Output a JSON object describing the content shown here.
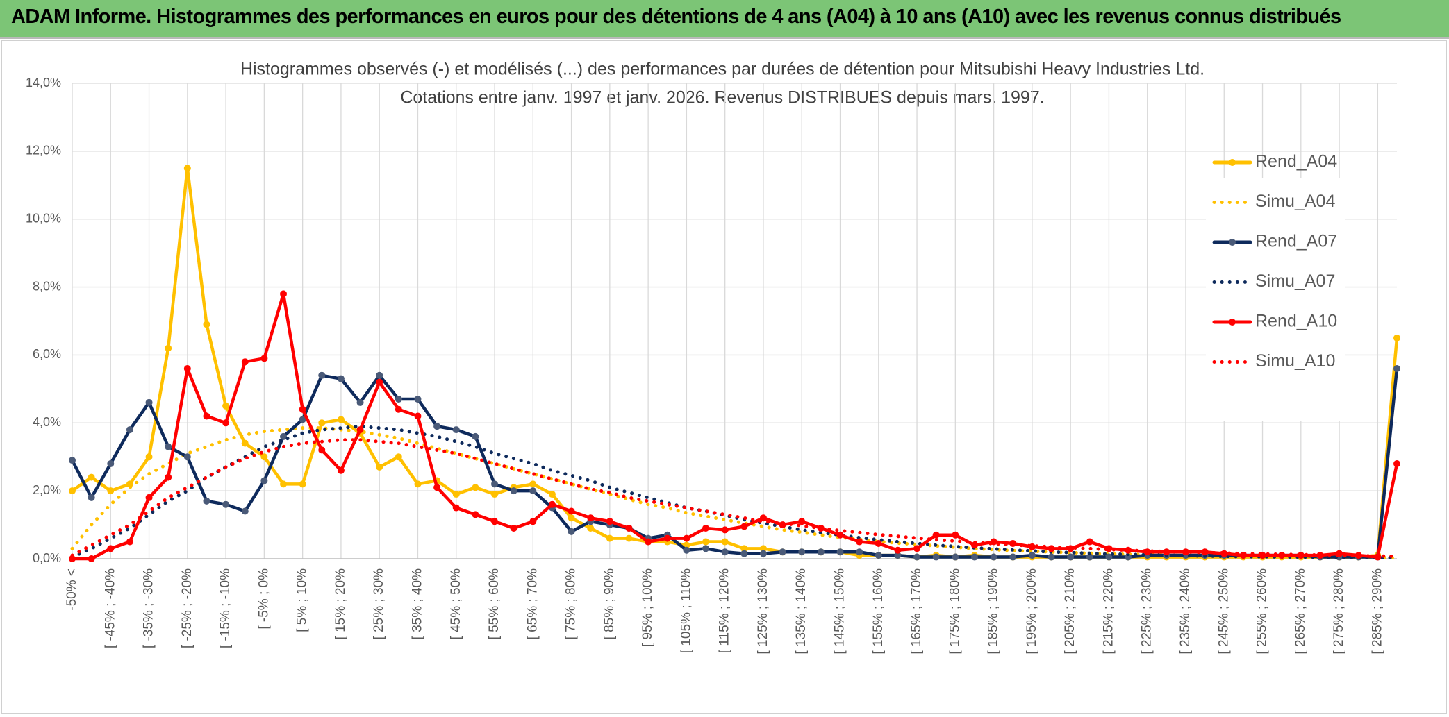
{
  "page_title": "ADAM Informe. Histogrammes des performances en euros pour des détentions de 4 ans (A04) à 10 ans (A10) avec les revenus connus distribués",
  "chart_data": {
    "type": "line",
    "title": "Histogrammes observés (-) et modélisés (...) des performances par durées de détention pour Mitsubishi Heavy Industries Ltd.",
    "subtitle": "Cotations entre janv. 1997 et janv. 2026. Revenus DISTRIBUES depuis mars. 1997.",
    "categories": [
      "-50% <",
      null,
      "[ -45% ; -40%",
      null,
      "[ -35% ; -30%",
      null,
      "[ -25% ; -20%",
      null,
      "[ -15% ; -10%",
      null,
      "[ -5% ; 0%",
      null,
      "[ 5% ; 10%",
      null,
      "[ 15% ; 20%",
      null,
      "[ 25% ; 30%",
      null,
      "[ 35% ; 40%",
      null,
      "[ 45% ; 50%",
      null,
      "[ 55% ; 60%",
      null,
      "[ 65% ; 70%",
      null,
      "[ 75% ; 80%",
      null,
      "[ 85% ; 90%",
      null,
      "[ 95% ; 100%",
      null,
      "[ 105% ; 110%",
      null,
      "[ 115% ; 120%",
      null,
      "[ 125% ; 130%",
      null,
      "[ 135% ; 140%",
      null,
      "[ 145% ; 150%",
      null,
      "[ 155% ; 160%",
      null,
      "[ 165% ; 170%",
      null,
      "[ 175% ; 180%",
      null,
      "[ 185% ; 190%",
      null,
      "[ 195% ; 200%",
      null,
      "[ 205% ; 210%",
      null,
      "[ 215% ; 220%",
      null,
      "[ 225% ; 230%",
      null,
      "[ 235% ; 240%",
      null,
      "[ 245% ; 250%",
      null,
      "[ 255% ; 260%",
      null,
      "[ 265% ; 270%",
      null,
      "[ 275% ; 280%",
      null,
      "[ 285% ; 290%",
      null
    ],
    "series": [
      {
        "name": "Rend_A04",
        "color": "#ffc000",
        "dash": "solid",
        "markers": true,
        "values": [
          2.0,
          2.4,
          2.0,
          2.2,
          3.0,
          6.2,
          11.5,
          6.9,
          4.5,
          3.4,
          3.0,
          2.2,
          2.2,
          4.0,
          4.1,
          3.7,
          2.7,
          3.0,
          2.2,
          2.3,
          1.9,
          2.1,
          1.9,
          2.1,
          2.2,
          1.9,
          1.2,
          0.9,
          0.6,
          0.6,
          0.5,
          0.5,
          0.4,
          0.5,
          0.5,
          0.3,
          0.3,
          0.2,
          0.2,
          0.2,
          0.2,
          0.1,
          0.1,
          0.1,
          0.05,
          0.1,
          0.05,
          0.1,
          0.05,
          0.05,
          0.05,
          0.05,
          0.05,
          0.05,
          0.05,
          0.05,
          0.05,
          0.05,
          0.05,
          0.05,
          0.05,
          0.05,
          0.05,
          0.05,
          0.05,
          0.05,
          0.05,
          0.05,
          0.1,
          6.5
        ]
      },
      {
        "name": "Simu_A04",
        "color": "#ffc000",
        "dash": "dotted",
        "markers": false,
        "values": [
          0.3,
          1.0,
          1.6,
          2.1,
          2.5,
          2.8,
          3.1,
          3.3,
          3.5,
          3.65,
          3.75,
          3.8,
          3.85,
          3.85,
          3.8,
          3.75,
          3.65,
          3.55,
          3.4,
          3.25,
          3.1,
          2.95,
          2.8,
          2.65,
          2.5,
          2.35,
          2.2,
          2.05,
          1.9,
          1.75,
          1.6,
          1.5,
          1.35,
          1.25,
          1.15,
          1.05,
          0.95,
          0.85,
          0.78,
          0.7,
          0.63,
          0.57,
          0.51,
          0.46,
          0.42,
          0.38,
          0.34,
          0.3,
          0.27,
          0.24,
          0.22,
          0.2,
          0.18,
          0.16,
          0.14,
          0.13,
          0.12,
          0.1,
          0.09,
          0.08,
          0.07,
          0.07,
          0.06,
          0.05,
          0.05,
          0.04,
          0.04,
          0.04,
          0.03,
          0.03
        ]
      },
      {
        "name": "Rend_A07",
        "color": "#0e2a5c",
        "dash": "solid",
        "markers": true,
        "values": [
          2.9,
          1.8,
          2.8,
          3.8,
          4.6,
          3.3,
          3.0,
          1.7,
          1.6,
          1.4,
          2.3,
          3.6,
          4.1,
          5.4,
          5.3,
          4.6,
          5.4,
          4.7,
          4.7,
          3.9,
          3.8,
          3.6,
          2.2,
          2.0,
          2.0,
          1.5,
          0.8,
          1.1,
          1.0,
          0.9,
          0.6,
          0.7,
          0.25,
          0.3,
          0.2,
          0.15,
          0.15,
          0.2,
          0.2,
          0.2,
          0.2,
          0.2,
          0.1,
          0.1,
          0.05,
          0.05,
          0.05,
          0.05,
          0.05,
          0.05,
          0.1,
          0.05,
          0.05,
          0.05,
          0.05,
          0.05,
          0.1,
          0.1,
          0.1,
          0.1,
          0.1,
          0.1,
          0.1,
          0.1,
          0.1,
          0.05,
          0.05,
          0.05,
          0.05,
          5.6
        ]
      },
      {
        "name": "Simu_A07",
        "color": "#0e2a5c",
        "dash": "dotted",
        "markers": false,
        "values": [
          0.05,
          0.3,
          0.6,
          0.9,
          1.3,
          1.7,
          2.0,
          2.4,
          2.7,
          3.0,
          3.3,
          3.5,
          3.7,
          3.8,
          3.85,
          3.9,
          3.85,
          3.8,
          3.7,
          3.6,
          3.45,
          3.3,
          3.1,
          2.95,
          2.8,
          2.6,
          2.45,
          2.3,
          2.1,
          1.95,
          1.8,
          1.65,
          1.5,
          1.4,
          1.28,
          1.15,
          1.05,
          0.95,
          0.85,
          0.77,
          0.7,
          0.62,
          0.56,
          0.5,
          0.45,
          0.4,
          0.36,
          0.32,
          0.29,
          0.26,
          0.23,
          0.2,
          0.18,
          0.16,
          0.14,
          0.13,
          0.11,
          0.1,
          0.09,
          0.08,
          0.07,
          0.06,
          0.06,
          0.05,
          0.05,
          0.04,
          0.04,
          0.03,
          0.03,
          0.03
        ]
      },
      {
        "name": "Rend_A10",
        "color": "#ff0000",
        "dash": "solid",
        "markers": true,
        "values": [
          0.0,
          0.0,
          0.3,
          0.5,
          1.8,
          2.4,
          5.6,
          4.2,
          4.0,
          5.8,
          5.9,
          7.8,
          4.4,
          3.2,
          2.6,
          3.8,
          5.2,
          4.4,
          4.2,
          2.1,
          1.5,
          1.3,
          1.1,
          0.9,
          1.1,
          1.6,
          1.4,
          1.2,
          1.1,
          0.9,
          0.5,
          0.6,
          0.6,
          0.9,
          0.85,
          0.95,
          1.2,
          1.0,
          1.1,
          0.9,
          0.7,
          0.5,
          0.45,
          0.25,
          0.3,
          0.7,
          0.7,
          0.4,
          0.5,
          0.45,
          0.35,
          0.3,
          0.3,
          0.5,
          0.3,
          0.25,
          0.2,
          0.2,
          0.2,
          0.2,
          0.15,
          0.1,
          0.1,
          0.1,
          0.1,
          0.1,
          0.15,
          0.1,
          0.05,
          2.8
        ]
      },
      {
        "name": "Simu_A10",
        "color": "#ff0000",
        "dash": "dotted",
        "markers": false,
        "values": [
          0.1,
          0.4,
          0.7,
          1.0,
          1.4,
          1.8,
          2.1,
          2.4,
          2.7,
          2.95,
          3.15,
          3.3,
          3.4,
          3.45,
          3.5,
          3.5,
          3.45,
          3.4,
          3.3,
          3.2,
          3.1,
          2.95,
          2.8,
          2.65,
          2.5,
          2.35,
          2.2,
          2.05,
          1.95,
          1.8,
          1.7,
          1.6,
          1.5,
          1.4,
          1.3,
          1.2,
          1.1,
          1.05,
          0.97,
          0.9,
          0.83,
          0.77,
          0.71,
          0.66,
          0.61,
          0.56,
          0.52,
          0.48,
          0.44,
          0.41,
          0.38,
          0.35,
          0.32,
          0.3,
          0.27,
          0.25,
          0.23,
          0.21,
          0.2,
          0.18,
          0.17,
          0.15,
          0.14,
          0.13,
          0.12,
          0.11,
          0.1,
          0.09,
          0.08,
          0.07
        ]
      }
    ],
    "ylim": [
      0,
      14
    ],
    "yticks": [
      {
        "value": 0,
        "label": "0,0%"
      },
      {
        "value": 2,
        "label": "2,0%"
      },
      {
        "value": 4,
        "label": "4,0%"
      },
      {
        "value": 6,
        "label": "6,0%"
      },
      {
        "value": 8,
        "label": "8,0%"
      },
      {
        "value": 10,
        "label": "10,0%"
      },
      {
        "value": 12,
        "label": "12,0%"
      },
      {
        "value": 14,
        "label": "14,0%"
      }
    ],
    "grid": true,
    "legend": "right"
  }
}
